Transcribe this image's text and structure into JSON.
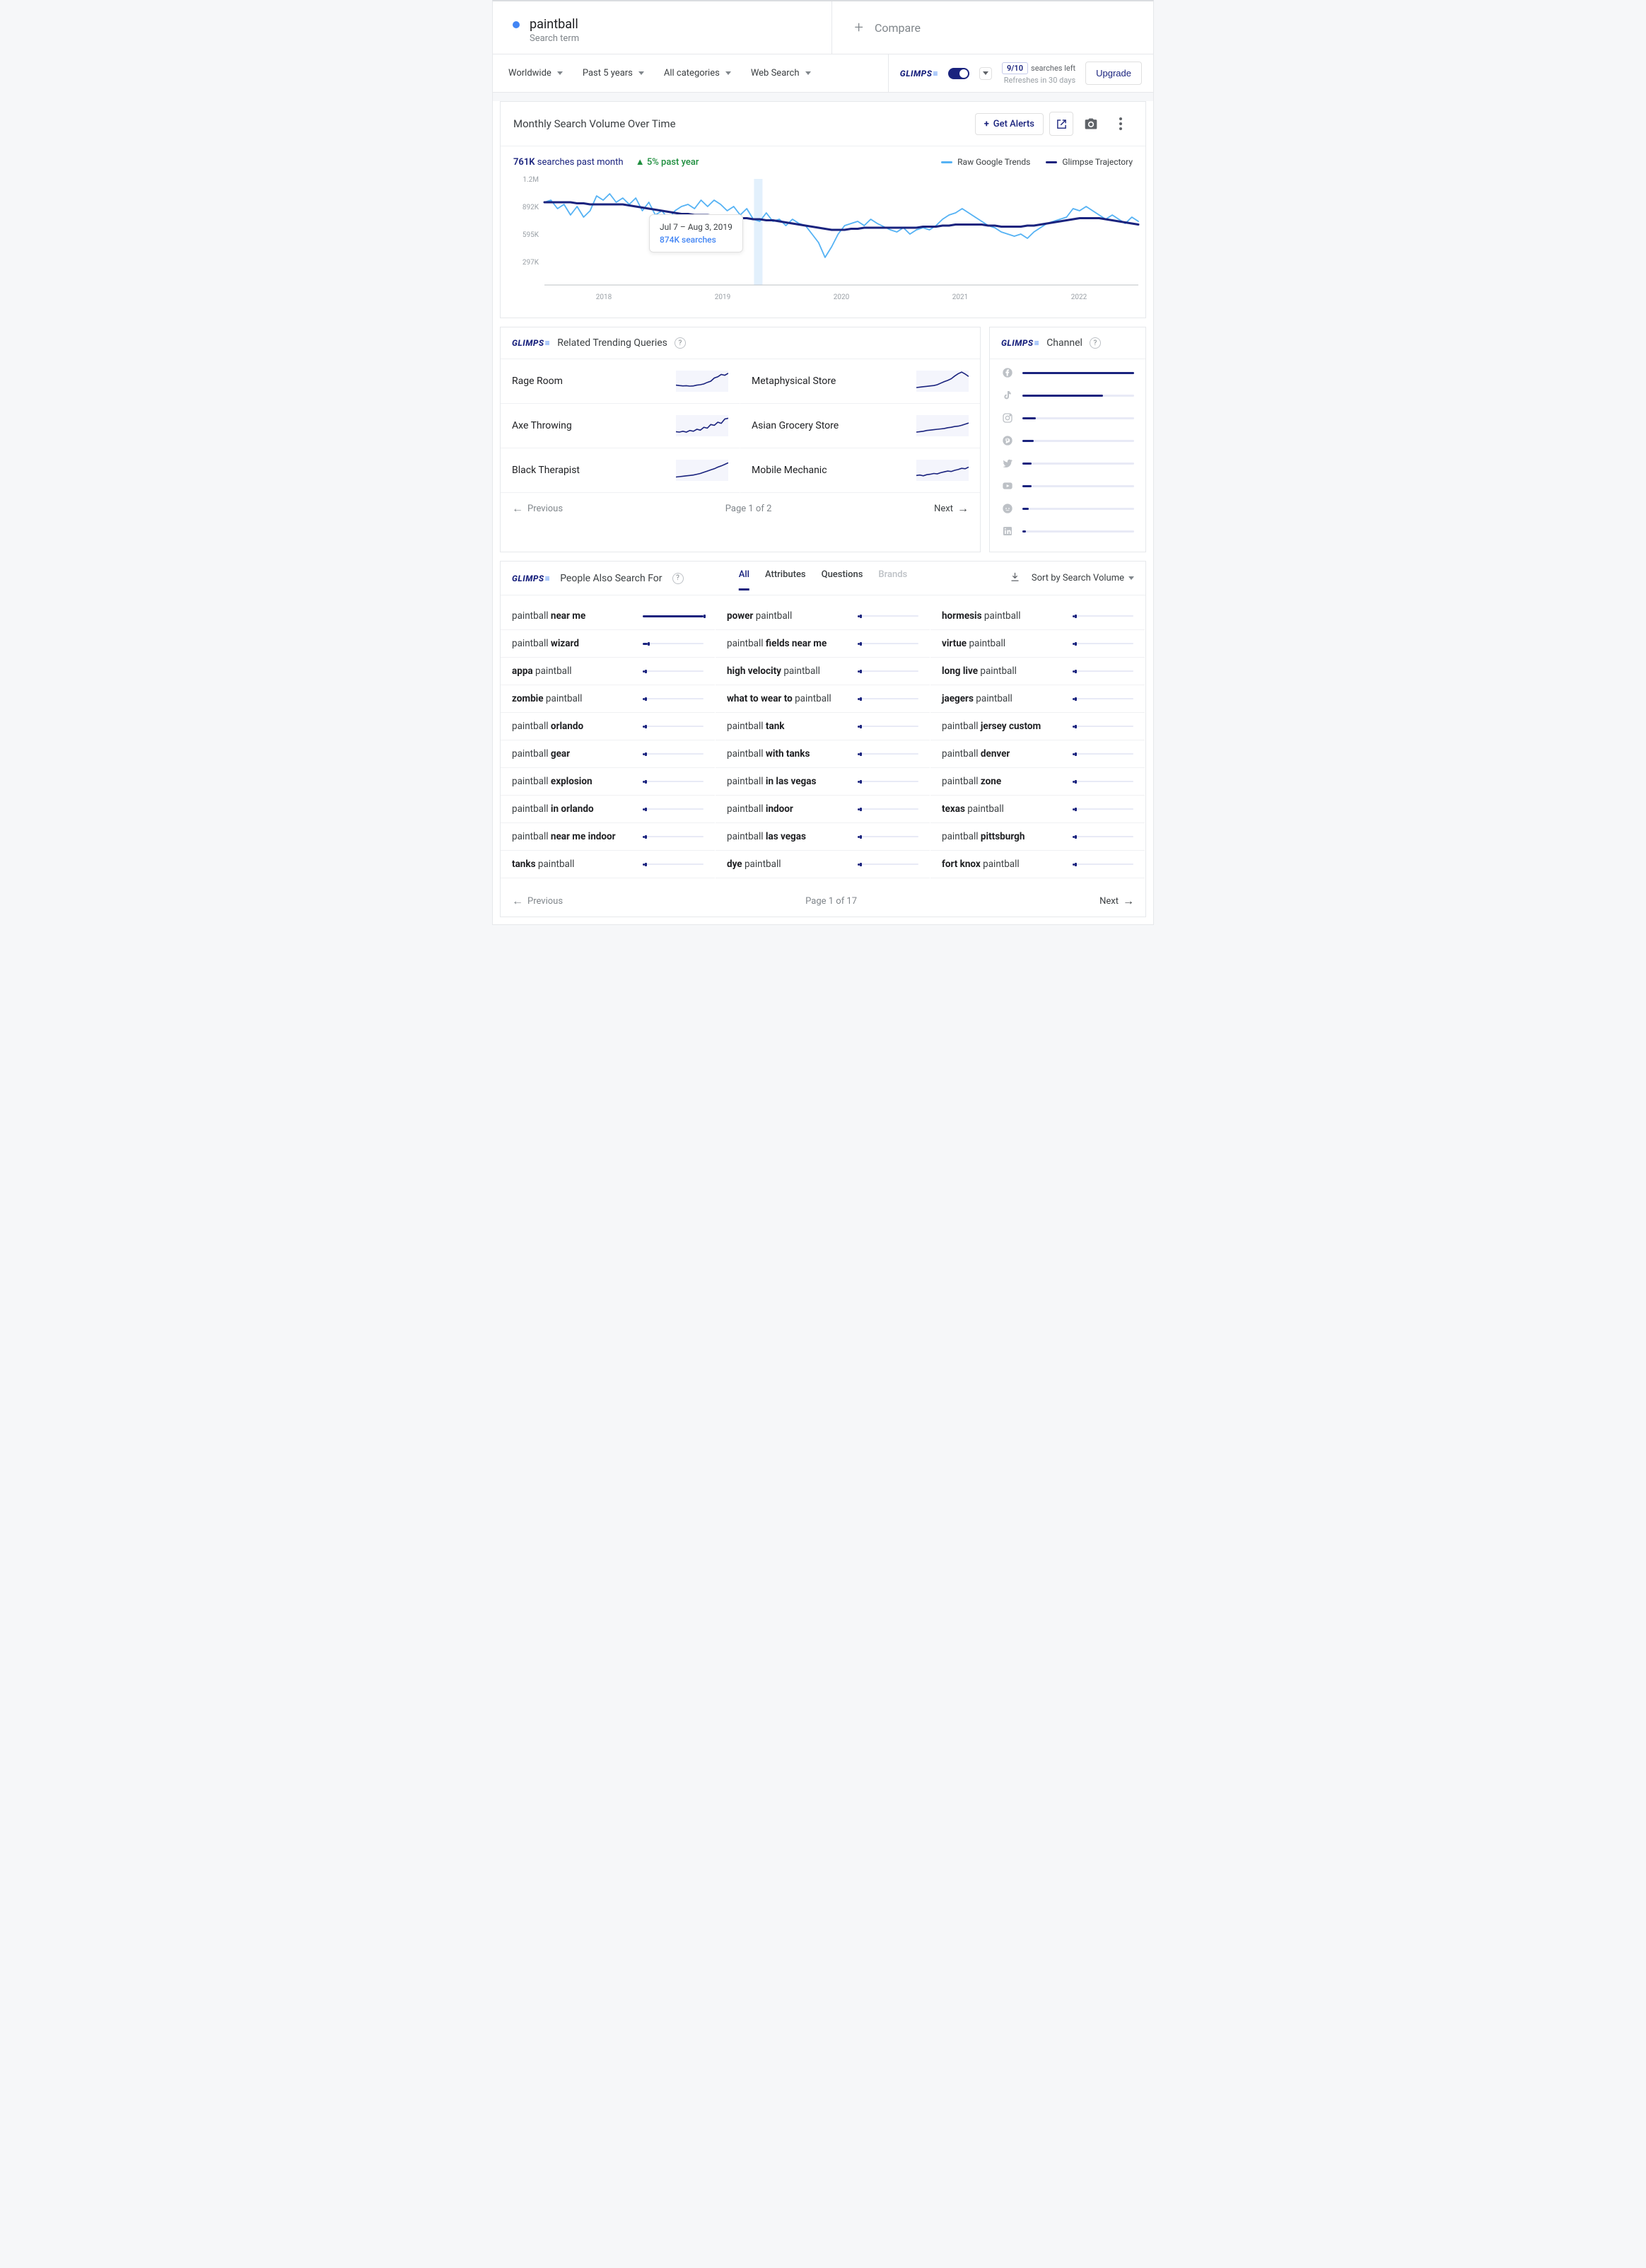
{
  "search": {
    "term": "paintball",
    "sub": "Search term",
    "compare": "Compare"
  },
  "filters": {
    "geo": "Worldwide",
    "time": "Past 5 years",
    "cat": "All categories",
    "type": "Web Search"
  },
  "quota": {
    "count": "9/10",
    "label": "searches left",
    "sub": "Refreshes in 30 days",
    "upgrade": "Upgrade"
  },
  "logo": "GLIMPS",
  "chart": {
    "title": "Monthly Search Volume Over Time",
    "alerts": "Get Alerts",
    "volume": "761K",
    "volume_label": "searches past month",
    "growth": "5% past year",
    "legend_raw": "Raw Google Trends",
    "legend_traj": "Glimpse Trajectory",
    "color_raw": "#55b2f4",
    "color_traj": "#1a237e",
    "y_ticks": [
      "1.2M",
      "892K",
      "595K",
      "297K"
    ],
    "x_ticks": [
      "2018",
      "2019",
      "2020",
      "2021",
      "2022"
    ],
    "tooltip_date": "Jul 7 – Aug 3, 2019",
    "tooltip_val": "874K searches",
    "highlight_x": 0.36,
    "raw_series": [
      0.78,
      0.8,
      0.72,
      0.76,
      0.66,
      0.74,
      0.64,
      0.7,
      0.84,
      0.8,
      0.86,
      0.78,
      0.82,
      0.76,
      0.82,
      0.7,
      0.78,
      0.66,
      0.7,
      0.62,
      0.7,
      0.74,
      0.76,
      0.72,
      0.8,
      0.74,
      0.8,
      0.76,
      0.7,
      0.74,
      0.66,
      0.72,
      0.62,
      0.6,
      0.68,
      0.6,
      0.62,
      0.56,
      0.62,
      0.58,
      0.56,
      0.48,
      0.4,
      0.26,
      0.36,
      0.48,
      0.56,
      0.58,
      0.6,
      0.56,
      0.62,
      0.58,
      0.55,
      0.52,
      0.5,
      0.54,
      0.48,
      0.52,
      0.54,
      0.52,
      0.56,
      0.62,
      0.66,
      0.68,
      0.72,
      0.68,
      0.64,
      0.6,
      0.56,
      0.54,
      0.5,
      0.48,
      0.46,
      0.48,
      0.44,
      0.5,
      0.54,
      0.58,
      0.6,
      0.62,
      0.64,
      0.72,
      0.7,
      0.74,
      0.7,
      0.66,
      0.62,
      0.66,
      0.62,
      0.58,
      0.64,
      0.6
    ],
    "traj_series": [
      0.78,
      0.78,
      0.78,
      0.78,
      0.78,
      0.77,
      0.77,
      0.76,
      0.76,
      0.76,
      0.76,
      0.76,
      0.76,
      0.75,
      0.74,
      0.73,
      0.72,
      0.71,
      0.7,
      0.69,
      0.68,
      0.67,
      0.67,
      0.66,
      0.66,
      0.66,
      0.65,
      0.65,
      0.64,
      0.64,
      0.63,
      0.63,
      0.62,
      0.62,
      0.61,
      0.61,
      0.6,
      0.59,
      0.58,
      0.57,
      0.56,
      0.55,
      0.54,
      0.53,
      0.52,
      0.52,
      0.52,
      0.53,
      0.53,
      0.54,
      0.54,
      0.54,
      0.54,
      0.54,
      0.54,
      0.54,
      0.54,
      0.54,
      0.55,
      0.55,
      0.55,
      0.56,
      0.56,
      0.57,
      0.57,
      0.57,
      0.57,
      0.57,
      0.56,
      0.56,
      0.55,
      0.55,
      0.55,
      0.55,
      0.56,
      0.56,
      0.57,
      0.58,
      0.59,
      0.6,
      0.61,
      0.62,
      0.63,
      0.63,
      0.63,
      0.63,
      0.62,
      0.61,
      0.6,
      0.59,
      0.58,
      0.57
    ]
  },
  "trending": {
    "title": "Related Trending Queries",
    "items": [
      "Rage Room",
      "Metaphysical Store",
      "Axe Throwing",
      "Asian Grocery Store",
      "Black Therapist",
      "Mobile Mechanic"
    ],
    "sparks": [
      [
        0.3,
        0.28,
        0.26,
        0.27,
        0.25,
        0.26,
        0.3,
        0.32,
        0.36,
        0.44,
        0.5,
        0.66,
        0.72,
        0.84,
        0.8,
        0.9
      ],
      [
        0.18,
        0.2,
        0.22,
        0.24,
        0.26,
        0.28,
        0.32,
        0.4,
        0.48,
        0.54,
        0.62,
        0.76,
        0.88,
        0.96,
        0.86,
        0.74
      ],
      [
        0.2,
        0.18,
        0.22,
        0.18,
        0.26,
        0.22,
        0.32,
        0.28,
        0.42,
        0.38,
        0.56,
        0.52,
        0.68,
        0.62,
        0.84,
        0.88
      ],
      [
        0.18,
        0.2,
        0.22,
        0.26,
        0.28,
        0.3,
        0.32,
        0.34,
        0.36,
        0.4,
        0.42,
        0.46,
        0.48,
        0.52,
        0.58,
        0.64
      ],
      [
        0.16,
        0.18,
        0.2,
        0.22,
        0.24,
        0.26,
        0.3,
        0.34,
        0.4,
        0.46,
        0.52,
        0.58,
        0.66,
        0.72,
        0.8,
        0.88
      ],
      [
        0.24,
        0.26,
        0.22,
        0.28,
        0.3,
        0.34,
        0.32,
        0.38,
        0.42,
        0.46,
        0.44,
        0.5,
        0.54,
        0.6,
        0.58,
        0.66
      ]
    ],
    "prev": "Previous",
    "next": "Next",
    "page": "Page 1 of 2"
  },
  "channel": {
    "title": "Channel",
    "rows": [
      {
        "name": "facebook",
        "value": 100
      },
      {
        "name": "tiktok",
        "value": 72
      },
      {
        "name": "instagram",
        "value": 12
      },
      {
        "name": "pinterest",
        "value": 10
      },
      {
        "name": "twitter",
        "value": 8
      },
      {
        "name": "youtube",
        "value": 8
      },
      {
        "name": "reddit",
        "value": 6
      },
      {
        "name": "linkedin",
        "value": 3
      }
    ]
  },
  "pasf": {
    "title": "People Also Search For",
    "tabs": [
      "All",
      "Attributes",
      "Questions",
      "Brands"
    ],
    "sort": "Sort by Search Volume",
    "columns": [
      [
        {
          "pre": "paintball ",
          "bold": "near me",
          "val": 100
        },
        {
          "pre": "paintball ",
          "bold": "wizard",
          "val": 8
        },
        {
          "bold": "appa",
          "post": " paintball",
          "val": 4
        },
        {
          "bold": "zombie",
          "post": " paintball",
          "val": 4
        },
        {
          "pre": "paintball ",
          "bold": "orlando",
          "val": 3
        },
        {
          "pre": "paintball ",
          "bold": "gear",
          "val": 3
        },
        {
          "pre": "paintball ",
          "bold": "explosion",
          "val": 3
        },
        {
          "pre": "paintball ",
          "bold": "in orlando",
          "val": 3
        },
        {
          "pre": "paintball ",
          "bold": "near me indoor",
          "val": 3
        },
        {
          "bold": "tanks",
          "post": " paintball",
          "val": 3
        }
      ],
      [
        {
          "bold": "power",
          "post": " paintball",
          "val": 3
        },
        {
          "pre": "paintball ",
          "bold": "fields near me",
          "val": 3
        },
        {
          "bold": "high velocity",
          "post": " paintball",
          "val": 3
        },
        {
          "bold": "what to wear to",
          "post": " paintball",
          "val": 3
        },
        {
          "pre": "paintball ",
          "bold": "tank",
          "val": 3
        },
        {
          "pre": "paintball ",
          "bold": "with tanks",
          "val": 3
        },
        {
          "pre": "paintball ",
          "bold": "in las vegas",
          "val": 3
        },
        {
          "pre": "paintball ",
          "bold": "indoor",
          "val": 3
        },
        {
          "pre": "paintball ",
          "bold": "las vegas",
          "val": 3
        },
        {
          "bold": "dye",
          "post": " paintball",
          "val": 3
        }
      ],
      [
        {
          "bold": "hormesis",
          "post": " paintball",
          "val": 3
        },
        {
          "bold": "virtue",
          "post": " paintball",
          "val": 3
        },
        {
          "bold": "long live",
          "post": " paintball",
          "val": 3
        },
        {
          "bold": "jaegers",
          "post": " paintball",
          "val": 3
        },
        {
          "pre": "paintball ",
          "bold": "jersey custom",
          "val": 3
        },
        {
          "pre": "paintball ",
          "bold": "denver",
          "val": 3
        },
        {
          "pre": "paintball ",
          "bold": "zone",
          "val": 3
        },
        {
          "bold": "texas",
          "post": " paintball",
          "val": 3
        },
        {
          "pre": "paintball ",
          "bold": "pittsburgh",
          "val": 3
        },
        {
          "bold": "fort knox",
          "post": " paintball",
          "val": 3
        }
      ]
    ],
    "prev": "Previous",
    "next": "Next",
    "page": "Page 1 of 17"
  }
}
